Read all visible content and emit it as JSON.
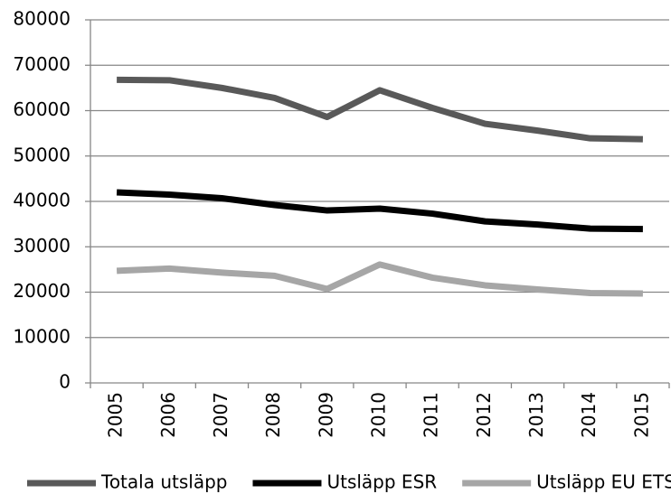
{
  "chart_data": {
    "type": "line",
    "categories": [
      "2005",
      "2006",
      "2007",
      "2008",
      "2009",
      "2010",
      "2011",
      "2012",
      "2013",
      "2014",
      "2015"
    ],
    "series": [
      {
        "name": "Totala utsläpp",
        "color": "#595959",
        "values": [
          66800,
          66700,
          65000,
          62800,
          58600,
          64500,
          60600,
          57100,
          55600,
          53900,
          53700
        ]
      },
      {
        "name": "Utsläpp ESR",
        "color": "#000000",
        "values": [
          42000,
          41500,
          40700,
          39200,
          38000,
          38400,
          37300,
          35600,
          34900,
          34000,
          33900
        ]
      },
      {
        "name": "Utsläpp EU ETS",
        "color": "#a6a6a6",
        "values": [
          24700,
          25200,
          24300,
          23600,
          20700,
          26100,
          23200,
          21500,
          20600,
          19800,
          19700
        ]
      }
    ],
    "ylim": [
      0,
      80000
    ],
    "yticks": [
      0,
      10000,
      20000,
      30000,
      40000,
      50000,
      60000,
      70000,
      80000
    ],
    "grid": true,
    "legend": "bottom"
  }
}
